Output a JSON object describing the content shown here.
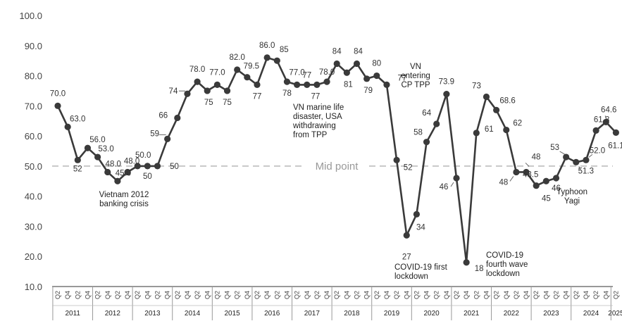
{
  "chart_data": {
    "type": "line",
    "ylim": [
      10,
      100
    ],
    "yticks": [
      "10.0",
      "20.0",
      "30.0",
      "40.0",
      "50.0",
      "60.0",
      "70.0",
      "80.0",
      "90.0",
      "100.0"
    ],
    "x_quarter_labels": [
      "Q2",
      "Q4"
    ],
    "years": [
      "2011",
      "2012",
      "2013",
      "2014",
      "2015",
      "2016",
      "2017",
      "2018",
      "2019",
      "2020",
      "2021",
      "2022",
      "2023",
      "2024",
      "2025"
    ],
    "series": [
      {
        "values": [
          70.0,
          63.0,
          52,
          56.0,
          53.0,
          48.0,
          45.0,
          48.0,
          50.0,
          50,
          50,
          59,
          66,
          74,
          78.0,
          75,
          77.0,
          75,
          82.0,
          79.5,
          77,
          86.0,
          85,
          78,
          77.0,
          77,
          77,
          78.0,
          84,
          81,
          84,
          79,
          80,
          77,
          52,
          27,
          34,
          58,
          64,
          73.9,
          46,
          18,
          61,
          73,
          68.6,
          62,
          48,
          48,
          43.5,
          45,
          46,
          53,
          51.3,
          52.0,
          61.8,
          64.6,
          61.1
        ],
        "labels": [
          "70.0",
          "63.0",
          "52",
          "56.0",
          "53.0",
          "48.0",
          "45.0",
          "48.0",
          "50.0",
          "50",
          "50",
          "59",
          "66",
          "74",
          "78.0",
          "75",
          "77.0",
          "75",
          "82.0",
          "79.5",
          "77",
          "86.0",
          "85",
          "78",
          "77.0",
          "77",
          "77",
          "78.0",
          "84",
          "81",
          "84",
          "79",
          "80",
          "77",
          "52",
          "27",
          "34",
          "58",
          "64",
          "73.9",
          "46",
          "18",
          "61",
          "73",
          "68.6",
          "62",
          "48",
          "48",
          "43.5",
          "45",
          "46",
          "53",
          "51.3",
          "52.0",
          "61.8",
          "64.6",
          "61.1"
        ]
      }
    ],
    "reference_line": {
      "value": 50,
      "label": "Mid point"
    },
    "annotations": [
      {
        "id": "banking",
        "lines": [
          "Vietnam 2012",
          "banking crisis"
        ]
      },
      {
        "id": "marine",
        "lines": [
          "VN marine life",
          "disaster, USA",
          "withdrawing",
          "from TPP"
        ]
      },
      {
        "id": "cptpp",
        "lines": [
          "VN",
          "entering",
          "CP TPP"
        ]
      },
      {
        "id": "covid1",
        "lines": [
          "COVID-19 first",
          "lockdown"
        ]
      },
      {
        "id": "covid4",
        "lines": [
          "COVID-19",
          "fourth wave",
          "lockdown"
        ]
      },
      {
        "id": "yagi",
        "lines": [
          "Typhoon",
          "Yagi"
        ]
      }
    ],
    "colors": {
      "line": "#3a3a3a",
      "marker": "#3a3a3a",
      "midline": "#c8c8c8",
      "axis": "#333333"
    },
    "grid": false
  }
}
